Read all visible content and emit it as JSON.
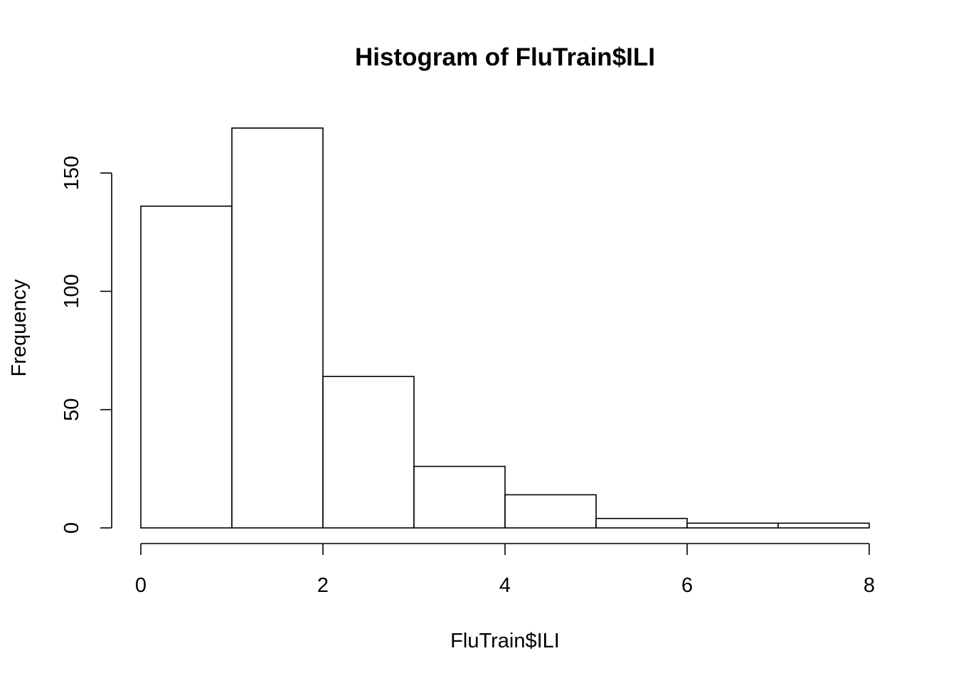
{
  "chart_data": {
    "type": "bar",
    "subtype": "histogram",
    "title": "Histogram of FluTrain$ILI",
    "xlabel": "FluTrain$ILI",
    "ylabel": "Frequency",
    "bins": [
      {
        "start": 0,
        "end": 1,
        "count": 136
      },
      {
        "start": 1,
        "end": 2,
        "count": 169
      },
      {
        "start": 2,
        "end": 3,
        "count": 64
      },
      {
        "start": 3,
        "end": 4,
        "count": 26
      },
      {
        "start": 4,
        "end": 5,
        "count": 14
      },
      {
        "start": 5,
        "end": 6,
        "count": 4
      },
      {
        "start": 6,
        "end": 7,
        "count": 2
      },
      {
        "start": 7,
        "end": 8,
        "count": 2
      }
    ],
    "xlim": [
      0,
      8
    ],
    "ylim": [
      0,
      169
    ],
    "x_ticks": [
      0,
      2,
      4,
      6,
      8
    ],
    "x_tick_labels": [
      "0",
      "2",
      "4",
      "6",
      "8"
    ],
    "y_ticks": [
      0,
      50,
      100,
      150
    ],
    "y_tick_labels": [
      "0",
      "50",
      "100",
      "150"
    ],
    "grid": false,
    "legend": "none",
    "bar_fill": "#ffffff",
    "bar_stroke": "#000000"
  }
}
